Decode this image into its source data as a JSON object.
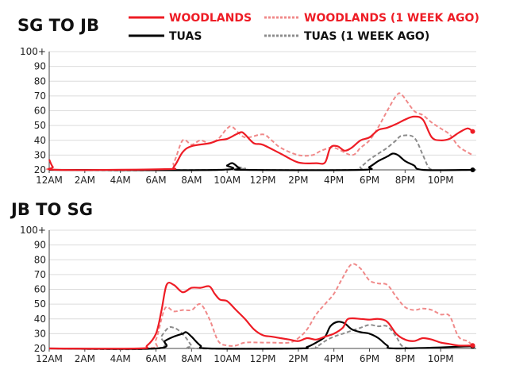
{
  "legend": [
    {
      "label": "WOODLANDS",
      "color": "#ee1c25",
      "dashed": false
    },
    {
      "label": "WOODLANDS (1 WEEK AGO)",
      "color": "#f08a8a",
      "dashed": true
    },
    {
      "label": "TUAS",
      "color": "#000000",
      "dashed": false
    },
    {
      "label": "TUAS (1 WEEK AGO)",
      "color": "#8c8c8c",
      "dashed": true
    }
  ],
  "chart_data": [
    {
      "type": "line",
      "title": "SG TO JB",
      "x_ticks": [
        "12AM",
        "2AM",
        "4AM",
        "6AM",
        "8AM",
        "10AM",
        "12PM",
        "2PM",
        "4PM",
        "6PM",
        "8PM",
        "10PM"
      ],
      "y_ticks": [
        "20",
        "30",
        "40",
        "50",
        "60",
        "70",
        "80",
        "90",
        "100+"
      ],
      "ylim": [
        20,
        100
      ],
      "x_unit": "hour of day",
      "grid": "horizontal",
      "series": [
        {
          "name": "WOODLANDS",
          "color": "#ee1c25",
          "dashed": false,
          "end_marker": true,
          "points": [
            [
              0,
              27
            ],
            [
              0.2,
              22
            ],
            [
              0.5,
              20
            ],
            [
              6.5,
              20.5
            ],
            [
              7,
              22
            ],
            [
              7.5,
              32
            ],
            [
              8,
              36
            ],
            [
              9,
              38
            ],
            [
              9.5,
              40
            ],
            [
              10,
              41
            ],
            [
              10.5,
              44
            ],
            [
              10.8,
              45.5
            ],
            [
              11,
              44
            ],
            [
              11.5,
              38
            ],
            [
              12,
              37
            ],
            [
              13,
              31
            ],
            [
              14,
              25
            ],
            [
              15,
              24.5
            ],
            [
              15.5,
              25
            ],
            [
              15.8,
              35
            ],
            [
              16.2,
              36
            ],
            [
              16.6,
              33
            ],
            [
              17,
              35
            ],
            [
              17.5,
              40
            ],
            [
              18,
              42
            ],
            [
              18.5,
              47
            ],
            [
              19,
              48.5
            ],
            [
              19.5,
              51
            ],
            [
              20,
              54
            ],
            [
              20.5,
              56
            ],
            [
              21,
              54
            ],
            [
              21.5,
              42
            ],
            [
              22,
              40
            ],
            [
              22.5,
              41
            ],
            [
              23,
              45
            ],
            [
              23.5,
              48
            ],
            [
              23.8,
              46
            ]
          ]
        },
        {
          "name": "WOODLANDS (1 WEEK AGO)",
          "color": "#f08a8a",
          "dashed": true,
          "end_marker": false,
          "points": [
            [
              0,
              21
            ],
            [
              0.5,
              20
            ],
            [
              6.5,
              20
            ],
            [
              7,
              25
            ],
            [
              7.5,
              40
            ],
            [
              8,
              37
            ],
            [
              8.5,
              40
            ],
            [
              9,
              38
            ],
            [
              9.5,
              41
            ],
            [
              10,
              48
            ],
            [
              10.3,
              49
            ],
            [
              11,
              42
            ],
            [
              12,
              44
            ],
            [
              12.5,
              40
            ],
            [
              13,
              35
            ],
            [
              14,
              30
            ],
            [
              14.8,
              30
            ],
            [
              15.3,
              33
            ],
            [
              16,
              35
            ],
            [
              17,
              30
            ],
            [
              17.5,
              35
            ],
            [
              18,
              40
            ],
            [
              18.5,
              49
            ],
            [
              19,
              60
            ],
            [
              19.5,
              70
            ],
            [
              19.8,
              71
            ],
            [
              20.5,
              60
            ],
            [
              21,
              57
            ],
            [
              21.5,
              52
            ],
            [
              22,
              48
            ],
            [
              22.5,
              44
            ],
            [
              23,
              36
            ],
            [
              23.5,
              32
            ],
            [
              23.8,
              30
            ]
          ]
        },
        {
          "name": "TUAS",
          "color": "#000000",
          "dashed": false,
          "end_marker": true,
          "points": [
            [
              0,
              20
            ],
            [
              9.5,
              20
            ],
            [
              10,
              23
            ],
            [
              10.3,
              24.5
            ],
            [
              10.7,
              21
            ],
            [
              11,
              20
            ],
            [
              17.5,
              20
            ],
            [
              18,
              22
            ],
            [
              18.5,
              26
            ],
            [
              19,
              29
            ],
            [
              19.3,
              31
            ],
            [
              19.6,
              30
            ],
            [
              20,
              26
            ],
            [
              20.5,
              23
            ],
            [
              21,
              20
            ],
            [
              23.8,
              20
            ]
          ]
        },
        {
          "name": "TUAS (1 WEEK AGO)",
          "color": "#8c8c8c",
          "dashed": true,
          "end_marker": false,
          "points": [
            [
              0,
              20
            ],
            [
              10,
              20
            ],
            [
              10.5,
              22
            ],
            [
              11,
              21
            ],
            [
              11.5,
              20
            ],
            [
              17,
              20
            ],
            [
              17.5,
              22
            ],
            [
              18,
              27
            ],
            [
              18.5,
              31
            ],
            [
              19,
              35
            ],
            [
              19.5,
              40
            ],
            [
              19.8,
              43
            ],
            [
              20.5,
              42
            ],
            [
              21,
              30
            ],
            [
              21.3,
              22
            ],
            [
              21.5,
              20
            ]
          ]
        }
      ]
    },
    {
      "type": "line",
      "title": "JB TO SG",
      "x_ticks": [
        "12AM",
        "2AM",
        "4AM",
        "6AM",
        "8AM",
        "10AM",
        "12PM",
        "2PM",
        "4PM",
        "6PM",
        "8PM",
        "10PM"
      ],
      "y_ticks": [
        "20",
        "30",
        "40",
        "50",
        "60",
        "70",
        "80",
        "90",
        "100+"
      ],
      "ylim": [
        20,
        100
      ],
      "x_unit": "hour of day",
      "grid": "horizontal",
      "series": [
        {
          "name": "WOODLANDS",
          "color": "#ee1c25",
          "dashed": false,
          "end_marker": true,
          "points": [
            [
              0,
              20
            ],
            [
              5,
              20
            ],
            [
              5.5,
              22
            ],
            [
              6,
              30
            ],
            [
              6.3,
              45
            ],
            [
              6.6,
              63
            ],
            [
              7,
              63
            ],
            [
              7.5,
              58
            ],
            [
              8,
              61
            ],
            [
              8.5,
              61
            ],
            [
              9,
              62
            ],
            [
              9.3,
              57
            ],
            [
              9.6,
              53
            ],
            [
              10,
              52
            ],
            [
              10.5,
              46
            ],
            [
              11,
              40
            ],
            [
              11.5,
              33
            ],
            [
              12,
              29
            ],
            [
              12.5,
              28
            ],
            [
              13,
              27
            ],
            [
              13.5,
              26
            ],
            [
              14,
              25
            ],
            [
              14.5,
              27
            ],
            [
              15,
              26
            ],
            [
              15.5,
              28
            ],
            [
              16,
              30
            ],
            [
              16.5,
              34
            ],
            [
              16.8,
              40
            ],
            [
              17.5,
              40
            ],
            [
              18,
              39.5
            ],
            [
              18.5,
              40
            ],
            [
              19,
              38
            ],
            [
              19.5,
              30
            ],
            [
              20,
              26
            ],
            [
              20.5,
              25
            ],
            [
              21,
              27
            ],
            [
              21.5,
              26
            ],
            [
              22,
              24
            ],
            [
              22.5,
              23
            ],
            [
              23,
              22
            ],
            [
              23.8,
              22
            ]
          ]
        },
        {
          "name": "WOODLANDS (1 WEEK AGO)",
          "color": "#f08a8a",
          "dashed": true,
          "end_marker": false,
          "points": [
            [
              0,
              20
            ],
            [
              5.5,
              20
            ],
            [
              6,
              26
            ],
            [
              6.5,
              47
            ],
            [
              7,
              45
            ],
            [
              7.5,
              46
            ],
            [
              8,
              46
            ],
            [
              8.5,
              50
            ],
            [
              9,
              40
            ],
            [
              9.5,
              25
            ],
            [
              10,
              22
            ],
            [
              10.5,
              22
            ],
            [
              11,
              24
            ],
            [
              12,
              24
            ],
            [
              12.5,
              24
            ],
            [
              13.5,
              24
            ],
            [
              14,
              27
            ],
            [
              14.5,
              33
            ],
            [
              15,
              43
            ],
            [
              15.5,
              50
            ],
            [
              16,
              57
            ],
            [
              16.5,
              68
            ],
            [
              17,
              77
            ],
            [
              17.5,
              74
            ],
            [
              18,
              66
            ],
            [
              18.5,
              64
            ],
            [
              19,
              63
            ],
            [
              19.5,
              55
            ],
            [
              20,
              48
            ],
            [
              20.5,
              46
            ],
            [
              21,
              47
            ],
            [
              21.5,
              46
            ],
            [
              22,
              43
            ],
            [
              22.5,
              42
            ],
            [
              23,
              28
            ],
            [
              23.5,
              25
            ],
            [
              23.8,
              22
            ]
          ]
        },
        {
          "name": "TUAS",
          "color": "#000000",
          "dashed": false,
          "end_marker": true,
          "points": [
            [
              0,
              20
            ],
            [
              6,
              20
            ],
            [
              6.5,
              25
            ],
            [
              7,
              28
            ],
            [
              7.5,
              30
            ],
            [
              7.7,
              31
            ],
            [
              8,
              28
            ],
            [
              8.5,
              22
            ],
            [
              9,
              20
            ],
            [
              14,
              20
            ],
            [
              14.5,
              21
            ],
            [
              15,
              24
            ],
            [
              15.5,
              28
            ],
            [
              15.8,
              35
            ],
            [
              16.2,
              38
            ],
            [
              16.6,
              37
            ],
            [
              17,
              33
            ],
            [
              17.5,
              31
            ],
            [
              18,
              30
            ],
            [
              18.5,
              27
            ],
            [
              19,
              22
            ],
            [
              19.5,
              20
            ],
            [
              23.8,
              21.5
            ]
          ]
        },
        {
          "name": "TUAS (1 WEEK AGO)",
          "color": "#8c8c8c",
          "dashed": true,
          "end_marker": false,
          "points": [
            [
              0,
              20
            ],
            [
              6,
              20
            ],
            [
              6.3,
              28
            ],
            [
              6.7,
              34
            ],
            [
              7,
              34
            ],
            [
              7.3,
              32
            ],
            [
              7.7,
              27
            ],
            [
              8,
              22
            ],
            [
              8.3,
              20
            ],
            [
              14.5,
              20
            ],
            [
              15,
              21
            ],
            [
              15.5,
              25
            ],
            [
              16,
              28
            ],
            [
              16.5,
              30
            ],
            [
              17,
              32
            ],
            [
              17.5,
              34
            ],
            [
              18,
              36
            ],
            [
              18.5,
              35
            ],
            [
              19,
              35
            ],
            [
              19.5,
              28
            ],
            [
              19.8,
              22
            ],
            [
              20.2,
              20
            ]
          ]
        }
      ]
    }
  ]
}
